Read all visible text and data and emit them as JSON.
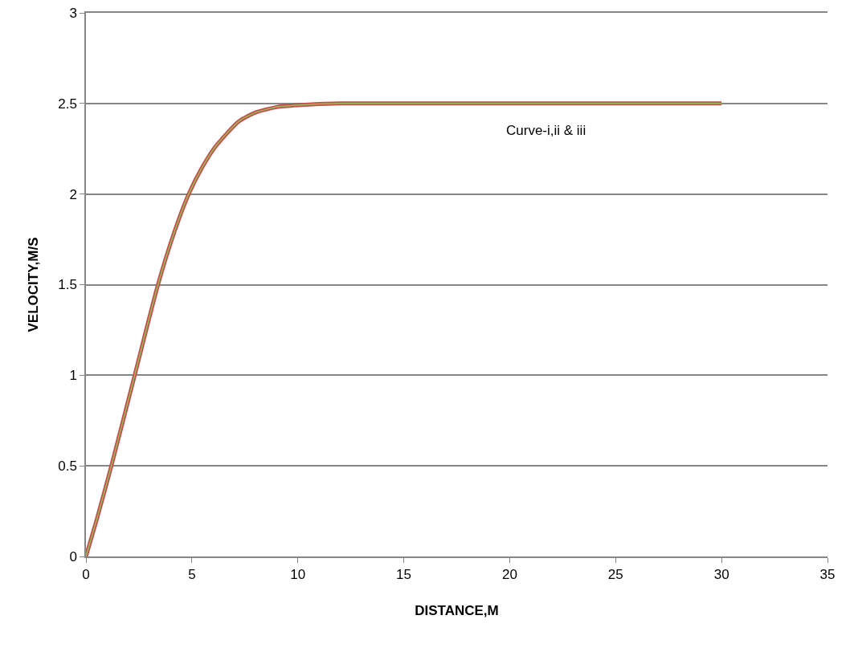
{
  "chart_data": {
    "type": "line",
    "xlabel": "DISTANCE,M",
    "ylabel": "VELOCITY,M/S",
    "x": [
      0,
      0.5,
      1.2,
      2.3,
      3.4,
      4.2,
      4.85,
      5.5,
      6.1,
      7.2,
      8,
      9,
      10,
      12,
      15,
      20,
      25,
      30
    ],
    "series": [
      {
        "color": "#c0504d",
        "values": [
          0,
          0.2,
          0.5,
          1.0,
          1.5,
          1.8,
          2.0,
          2.15,
          2.26,
          2.4,
          2.45,
          2.48,
          2.49,
          2.5,
          2.5,
          2.5,
          2.5,
          2.5
        ]
      },
      {
        "color": "#9bbb59",
        "values": [
          0,
          0.2,
          0.5,
          1.0,
          1.5,
          1.8,
          2.0,
          2.15,
          2.26,
          2.4,
          2.45,
          2.48,
          2.49,
          2.5,
          2.5,
          2.5,
          2.5,
          2.5
        ]
      }
    ],
    "xlim": [
      0,
      35
    ],
    "xticks": [
      0,
      5,
      10,
      15,
      20,
      25,
      30,
      35
    ],
    "ylim": [
      0,
      3
    ],
    "yticks": [
      0,
      0.5,
      1,
      1.5,
      2,
      2.5,
      3
    ],
    "grid": "y",
    "marker": "none",
    "line_style": "solid",
    "annotations": [
      "Curve-i,ii & iii"
    ]
  }
}
